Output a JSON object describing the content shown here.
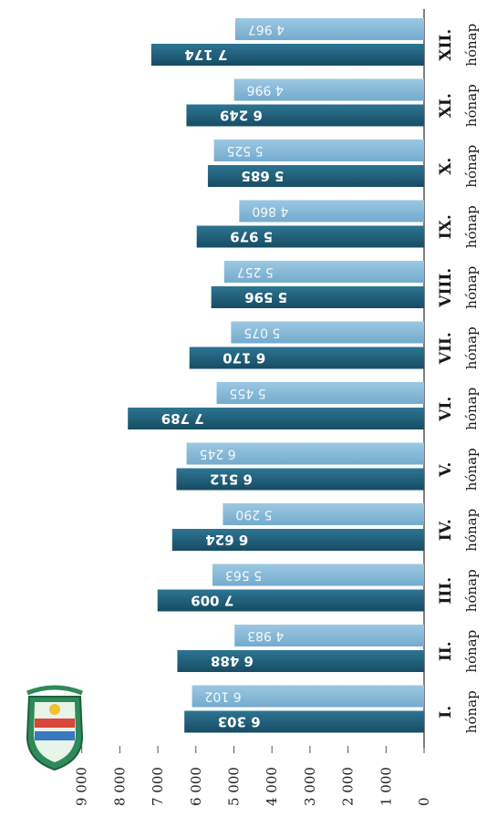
{
  "colors": {
    "series_light": "#7fb5d6",
    "series_dark": "#1f5f7a",
    "axis": "#555555",
    "background": "#ffffff"
  },
  "logo": {
    "icon": "sports-club-crest-icon"
  },
  "chart_data": {
    "type": "bar",
    "orientation": "vertical-bars-rotated-page",
    "categories": [
      {
        "main": "I.",
        "sub": "hónap"
      },
      {
        "main": "II.",
        "sub": "hónap"
      },
      {
        "main": "III.",
        "sub": "hónap"
      },
      {
        "main": "IV.",
        "sub": "hónap"
      },
      {
        "main": "V.",
        "sub": "hónap"
      },
      {
        "main": "VI.",
        "sub": "hónap"
      },
      {
        "main": "VII.",
        "sub": "hónap"
      },
      {
        "main": "VIII.",
        "sub": "hónap"
      },
      {
        "main": "IX.",
        "sub": "hónap"
      },
      {
        "main": "X.",
        "sub": "hónap"
      },
      {
        "main": "XI.",
        "sub": "hónap"
      },
      {
        "main": "XII.",
        "sub": "hónap"
      }
    ],
    "series": [
      {
        "color": "#1f5f7a",
        "values": [
          6303,
          6488,
          7009,
          6624,
          6512,
          7789,
          6170,
          5596,
          5979,
          5685,
          6249,
          7174
        ],
        "labels": [
          "6 303",
          "6 488",
          "7 009",
          "6 624",
          "6 512",
          "7 789",
          "6 170",
          "5 596",
          "5 979",
          "5 685",
          "6 249",
          "7 174"
        ]
      },
      {
        "color": "#7fb5d6",
        "values": [
          6102,
          4983,
          5563,
          5290,
          6245,
          5455,
          5075,
          5257,
          4860,
          5525,
          4996,
          4967
        ],
        "labels": [
          "6 102",
          "4 983",
          "5 563",
          "5 290",
          "6 245",
          "5 455",
          "5 075",
          "5 257",
          "4 860",
          "5 525",
          "4 996",
          "4 967"
        ]
      }
    ],
    "yticks": [
      {
        "value": 0,
        "label": "0"
      },
      {
        "value": 1000,
        "label": "1 000"
      },
      {
        "value": 2000,
        "label": "2 000"
      },
      {
        "value": 3000,
        "label": "3 000"
      },
      {
        "value": 4000,
        "label": "4 000"
      },
      {
        "value": 5000,
        "label": "5 000"
      },
      {
        "value": 6000,
        "label": "6 000"
      },
      {
        "value": 7000,
        "label": "7 000"
      },
      {
        "value": 8000,
        "label": "8 000"
      },
      {
        "value": 9000,
        "label": "9 000"
      }
    ],
    "ylim": [
      0,
      9000
    ],
    "grid": false,
    "legend": "none"
  }
}
